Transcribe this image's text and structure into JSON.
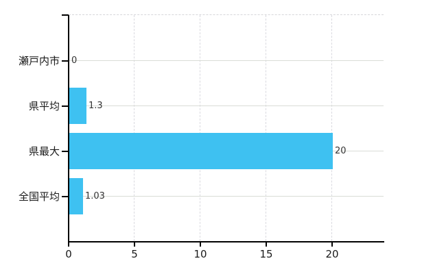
{
  "chart_data": {
    "type": "bar",
    "orientation": "horizontal",
    "title": "",
    "categories": [
      "瀬戸内市",
      "県平均",
      "県最大",
      "全国平均"
    ],
    "values": [
      0,
      1.3,
      20,
      1.03
    ],
    "value_labels": [
      "0",
      "1.3",
      "20",
      "1.03"
    ],
    "x_ticks": [
      0,
      5,
      10,
      15,
      20
    ],
    "x_tick_labels": [
      "0",
      "5",
      "10",
      "15",
      "20"
    ],
    "xlim": [
      0,
      23.9
    ],
    "xlabel": "",
    "ylabel": "",
    "grid": true,
    "legend": false,
    "colors": {
      "bar": "#3ec1f1",
      "axis": "#000000",
      "h_grid": "#d9dcd6",
      "v_grid": "#d9d9df",
      "category_text": "#1a1a1a",
      "value_text": "#333333"
    }
  }
}
